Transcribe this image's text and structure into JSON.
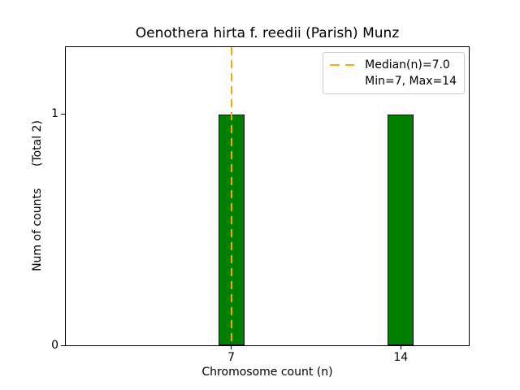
{
  "chart_data": {
    "type": "bar",
    "title": "Oenothera hirta f. reedii (Parish) Munz",
    "xlabel": "Chromosome count (n)",
    "ylabel": "Num of counts      (Total 2)",
    "total_annotation": "(Total 2)",
    "categories": [
      7,
      14
    ],
    "values": [
      1,
      1
    ],
    "xticks": [
      "7",
      "14"
    ],
    "yticks": [
      "0",
      "1"
    ],
    "xlim": [
      0.17,
      16.81
    ],
    "ylim": [
      0,
      1.29
    ],
    "bar_width_units": 1.07,
    "bar_color": "#008000",
    "bar_edge_color": "#000000",
    "median": 7.0,
    "min": 7,
    "max": 14,
    "median_line_color": "#FFA500",
    "grid": false,
    "legend": {
      "position": "upper right",
      "entries": [
        {
          "label": "Median(n)=7.0",
          "sample": "orange-dashed-line"
        },
        {
          "label": "Min=7, Max=14",
          "sample": "none"
        }
      ]
    }
  }
}
